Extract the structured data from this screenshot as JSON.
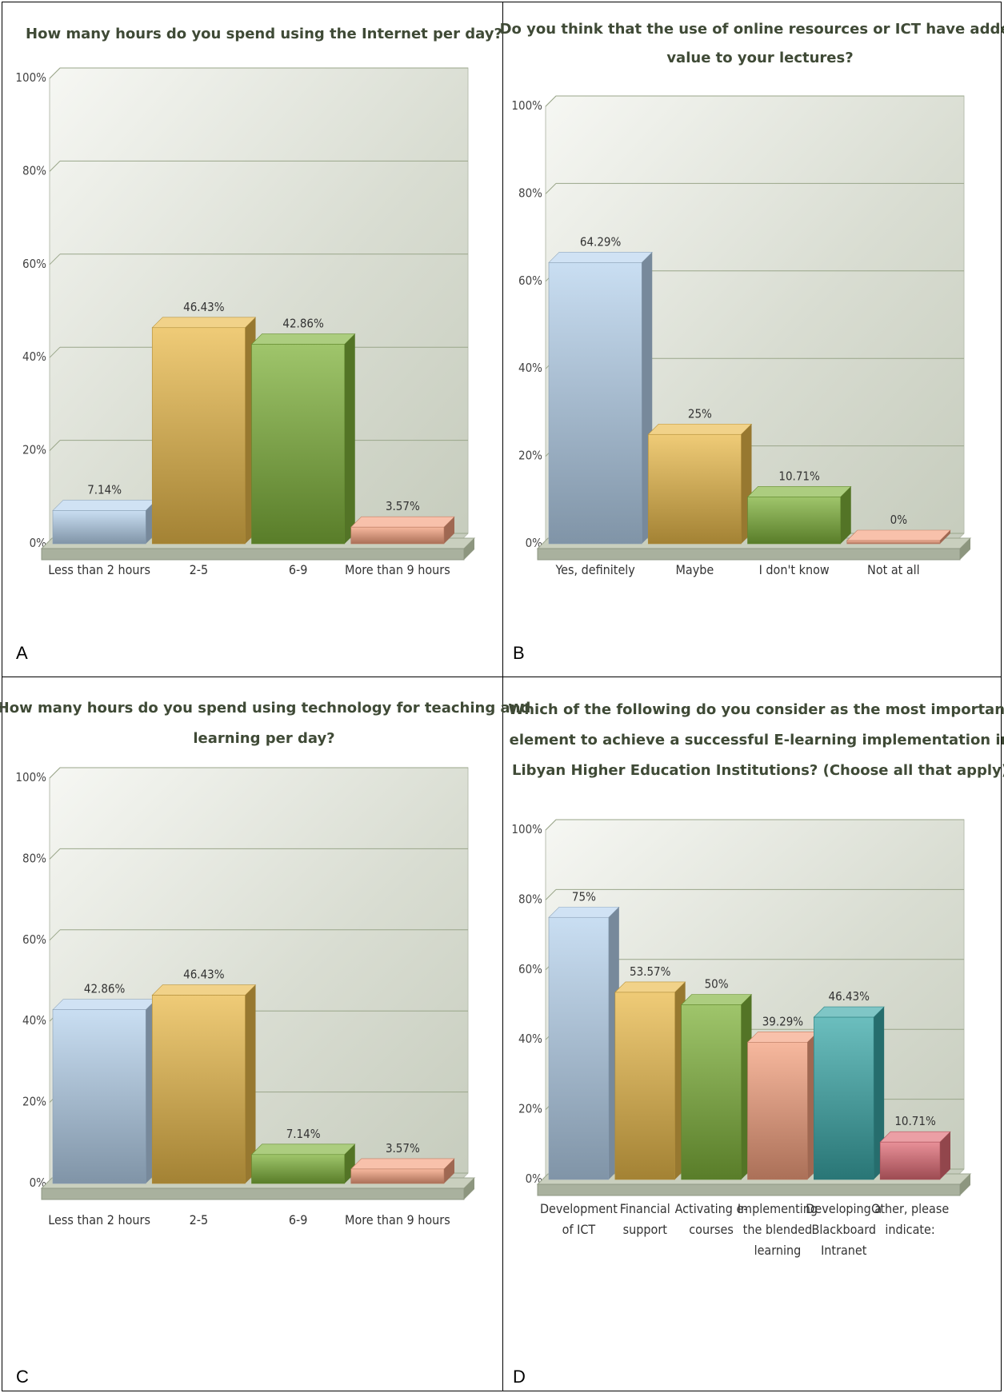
{
  "chart_data": [
    {
      "id": "A",
      "type": "bar",
      "title": [
        "How many hours do you spend using the Internet per day?"
      ],
      "categories": [
        [
          "Less than 2 hours"
        ],
        [
          "2-5"
        ],
        [
          "6-9"
        ],
        [
          "More than 9 hours"
        ]
      ],
      "values": [
        7.14,
        46.43,
        42.86,
        3.57
      ],
      "value_labels": [
        "7.14%",
        "46.43%",
        "42.86%",
        "3.57%"
      ],
      "ylim": [
        0,
        100
      ],
      "yticks": [
        "0%",
        "20%",
        "40%",
        "60%",
        "80%",
        "100%"
      ],
      "grid": true,
      "colors": [
        "#b7d3ee",
        "#e9b94a",
        "#7fb23a",
        "#f4a07e"
      ]
    },
    {
      "id": "B",
      "type": "bar",
      "title": [
        "Do you think that the use of online resources or ICT have added",
        "value to your lectures?"
      ],
      "categories": [
        [
          "Yes, definitely"
        ],
        [
          "Maybe"
        ],
        [
          "I don't know"
        ],
        [
          "Not at all"
        ]
      ],
      "values": [
        64.29,
        25,
        10.71,
        0
      ],
      "value_labels": [
        "64.29%",
        "25%",
        "10.71%",
        "0%"
      ],
      "ylim": [
        0,
        100
      ],
      "yticks": [
        "0%",
        "20%",
        "40%",
        "60%",
        "80%",
        "100%"
      ],
      "grid": true,
      "colors": [
        "#b7d3ee",
        "#e9b94a",
        "#7fb23a",
        "#f4a07e"
      ]
    },
    {
      "id": "C",
      "type": "bar",
      "title": [
        "How many hours do you spend using technology for teaching and",
        "learning per day?"
      ],
      "categories": [
        [
          "Less than 2 hours"
        ],
        [
          "2-5"
        ],
        [
          "6-9"
        ],
        [
          "More than 9 hours"
        ]
      ],
      "values": [
        42.86,
        46.43,
        7.14,
        3.57
      ],
      "value_labels": [
        "42.86%",
        "46.43%",
        "7.14%",
        "3.57%"
      ],
      "ylim": [
        0,
        100
      ],
      "yticks": [
        "0%",
        "20%",
        "40%",
        "60%",
        "80%",
        "100%"
      ],
      "grid": true,
      "colors": [
        "#b7d3ee",
        "#e9b94a",
        "#7fb23a",
        "#f4a07e"
      ]
    },
    {
      "id": "D",
      "type": "bar",
      "title": [
        "Which of the following do you consider as the most important",
        "element to achieve a successful E-learning implementation in",
        "Libyan Higher Education Institutions? (Choose all that apply)"
      ],
      "categories": [
        [
          "Development",
          "of ICT"
        ],
        [
          "Financial",
          "support"
        ],
        [
          "Activating e-",
          "courses"
        ],
        [
          "Implementing",
          "the blended",
          "learning"
        ],
        [
          "Developing a",
          "Blackboard",
          "Intranet"
        ],
        [
          "Other, please",
          "indicate:"
        ]
      ],
      "values": [
        75,
        53.57,
        50,
        39.29,
        46.43,
        10.71
      ],
      "value_labels": [
        "75%",
        "53.57%",
        "50%",
        "39.29%",
        "46.43%",
        "10.71%"
      ],
      "ylim": [
        0,
        100
      ],
      "yticks": [
        "0%",
        "20%",
        "40%",
        "60%",
        "80%",
        "100%"
      ],
      "grid": true,
      "colors": [
        "#b7d3ee",
        "#e9b94a",
        "#7fb23a",
        "#f4a07e",
        "#3aa8a8",
        "#e06b75"
      ]
    }
  ]
}
